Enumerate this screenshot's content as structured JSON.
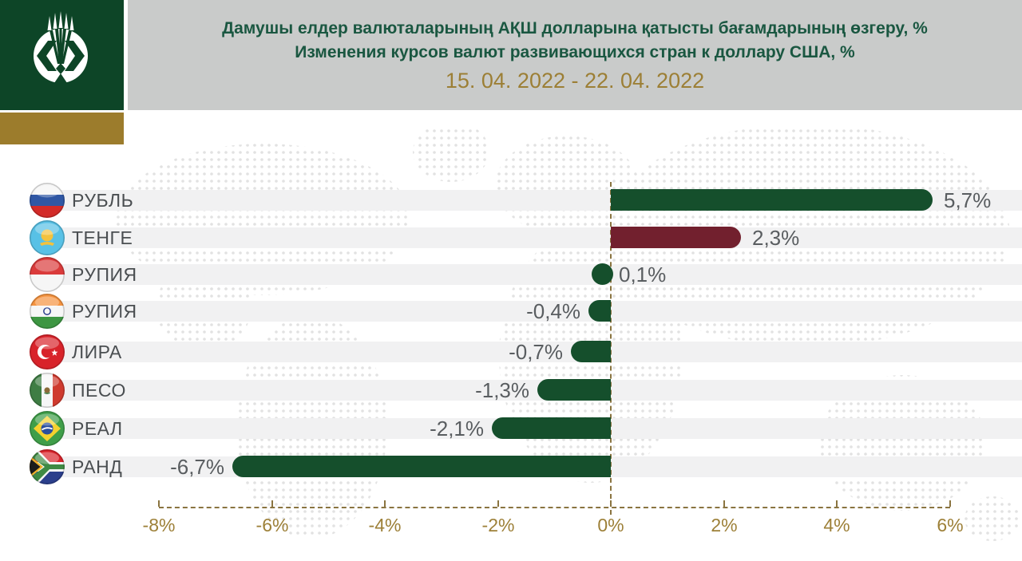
{
  "header": {
    "title_kk": "Дамушы елдер валюталарының АҚШ долларына қатысты бағамдарының өзгеру, %",
    "title_ru": "Изменения курсов валют развивающихся стран к доллару США, %",
    "period": "15. 04. 2022 - 22. 04. 2022",
    "logo_icon": "national-bank-kazakhstan-emblem-icon",
    "colors": {
      "header_bg": "#c9cbca",
      "title_green": "#1a5741",
      "period_gold": "#9c7f35",
      "logo_green": "#0d4527",
      "gold_band": "#9c7c2c"
    }
  },
  "chart_data": {
    "type": "bar",
    "orientation": "horizontal",
    "categories": [
      "РУБЛЬ",
      "ТЕНГЕ",
      "РУПИЯ",
      "РУПИЯ",
      "ЛИРА",
      "ПЕСО",
      "РЕАЛ",
      "РАНД"
    ],
    "flag_icons": [
      "russia-flag-icon",
      "kazakhstan-flag-icon",
      "indonesia-flag-icon",
      "india-flag-icon",
      "turkey-flag-icon",
      "mexico-flag-icon",
      "brazil-flag-icon",
      "south-africa-flag-icon"
    ],
    "values": [
      5.7,
      2.3,
      0.1,
      -0.4,
      -0.7,
      -1.3,
      -2.1,
      -6.7
    ],
    "value_labels": [
      "5,7%",
      "2,3%",
      "0,1%",
      "-0,4%",
      "-0,7%",
      "-1,3%",
      "-2,1%",
      "-6,7%"
    ],
    "bar_colors": [
      "#154f2c",
      "#72202e",
      "#154f2c",
      "#154f2c",
      "#154f2c",
      "#154f2c",
      "#154f2c",
      "#154f2c"
    ],
    "xlabel": "",
    "ylabel": "",
    "xlim": [
      -8,
      6
    ],
    "x_tick_values": [
      -8,
      -6,
      -4,
      -2,
      0,
      2,
      4,
      6
    ],
    "x_tick_labels": [
      "-8%",
      "-6%",
      "-4%",
      "-2%",
      "0%",
      "2%",
      "4%",
      "6%"
    ],
    "axis_color": "#8a7440",
    "grid": false,
    "legend": "none"
  }
}
